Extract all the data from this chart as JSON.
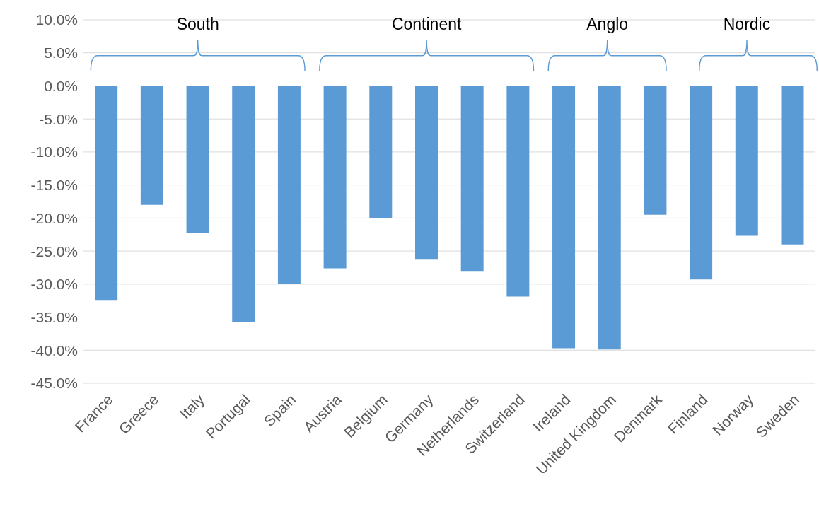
{
  "chart_data": {
    "type": "bar",
    "categories": [
      "France",
      "Greece",
      "Italy",
      "Portugal",
      "Spain",
      "Austria",
      "Belgium",
      "Germany",
      "Netherlands",
      "Switzerland",
      "Ireland",
      "United Kingdom",
      "Denmark",
      "Finland",
      "Norway",
      "Sweden"
    ],
    "values": [
      -32.4,
      -18.0,
      -22.3,
      -35.8,
      -29.9,
      -27.6,
      -20.0,
      -26.2,
      -28.0,
      -31.9,
      -39.7,
      -39.9,
      -19.5,
      -29.3,
      -22.7,
      -24.0
    ],
    "color": "#5b9bd5",
    "ylim": [
      -45,
      10
    ],
    "yticks": [
      {
        "value": -45,
        "label": "-45.0%"
      },
      {
        "value": -40,
        "label": "-40.0%"
      },
      {
        "value": -35,
        "label": "-35.0%"
      },
      {
        "value": -30,
        "label": "-30.0%"
      },
      {
        "value": -25,
        "label": "-25.0%"
      },
      {
        "value": -20,
        "label": "-20.0%"
      },
      {
        "value": -15,
        "label": "-15.0%"
      },
      {
        "value": -10,
        "label": "-10.0%"
      },
      {
        "value": -5,
        "label": "-5.0%"
      },
      {
        "value": 0,
        "label": "0.0%"
      },
      {
        "value": 5,
        "label": "5.0%"
      },
      {
        "value": 10,
        "label": "10.0%"
      }
    ],
    "grid": "y",
    "annotations": [
      "South",
      "Continent",
      "Anglo",
      "Nordic"
    ]
  }
}
